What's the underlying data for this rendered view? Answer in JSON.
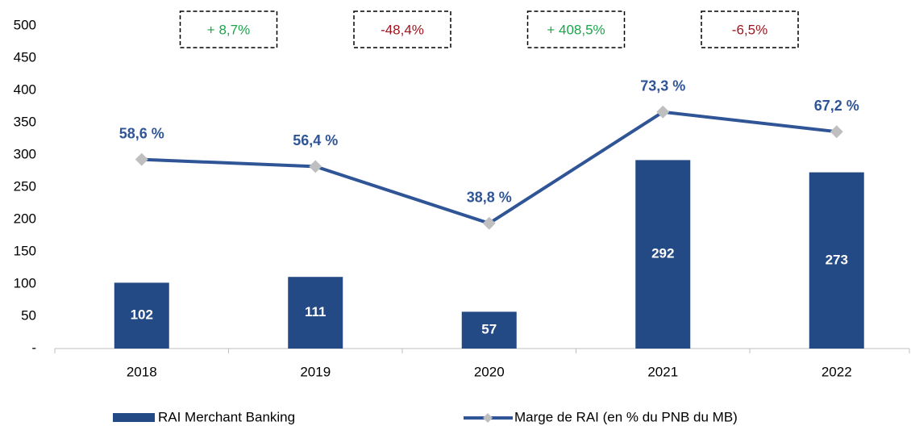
{
  "chart_data": {
    "type": "bar_line",
    "categories": [
      "2018",
      "2019",
      "2020",
      "2021",
      "2022"
    ],
    "series": [
      {
        "name": "RAI Merchant Banking",
        "type": "bar",
        "color": "#244a86",
        "values": [
          102,
          111,
          57,
          292,
          273
        ]
      },
      {
        "name": "Marge de RAI (en % du PNB du MB)",
        "type": "line",
        "axis": "y2",
        "color": "#2f5597",
        "marker_color": "#bfbfbf",
        "values": [
          58.6,
          56.4,
          38.8,
          73.3,
          67.2
        ],
        "value_labels": [
          "58,6 %",
          "56,4 %",
          "38,8 %",
          "73,3 %",
          "67,2 %"
        ]
      }
    ],
    "ylim": [
      0,
      500
    ],
    "yticks": [
      {
        "value": 0,
        "label": "-"
      },
      50,
      100,
      150,
      200,
      250,
      300,
      350,
      400,
      450,
      500
    ],
    "y2lim": [
      0,
      100
    ],
    "annotations": [
      {
        "text": "+ 8,7%",
        "color": "#1aa64a"
      },
      {
        "text": "-48,4%",
        "color": "#a0141e"
      },
      {
        "text": "+ 408,5%",
        "color": "#1aa64a"
      },
      {
        "text": "-6,5%",
        "color": "#a0141e"
      }
    ]
  }
}
